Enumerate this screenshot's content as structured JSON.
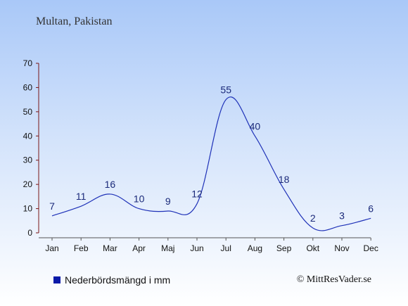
{
  "title": "Multan, Pakistan",
  "legend": {
    "label": "Nederbördsmängd i mm",
    "color": "#0a1aa8"
  },
  "credit": "© MittResVader.se",
  "colors": {
    "line": "#1f32b8",
    "label": "#1b2a7a",
    "axis": "#7a1616"
  },
  "chart_data": {
    "type": "line",
    "categories": [
      "Jan",
      "Feb",
      "Mar",
      "Apr",
      "Maj",
      "Jun",
      "Jul",
      "Aug",
      "Sep",
      "Okt",
      "Nov",
      "Dec"
    ],
    "series": [
      {
        "values": [
          7,
          11,
          16,
          10,
          9,
          12,
          55,
          40,
          18,
          2,
          3,
          6
        ]
      }
    ],
    "yticks": [
      0,
      10,
      20,
      30,
      40,
      50,
      60,
      70
    ],
    "ylim": [
      0,
      70
    ],
    "grid": false,
    "legend_position": "bottom-left",
    "data_labels": true
  }
}
